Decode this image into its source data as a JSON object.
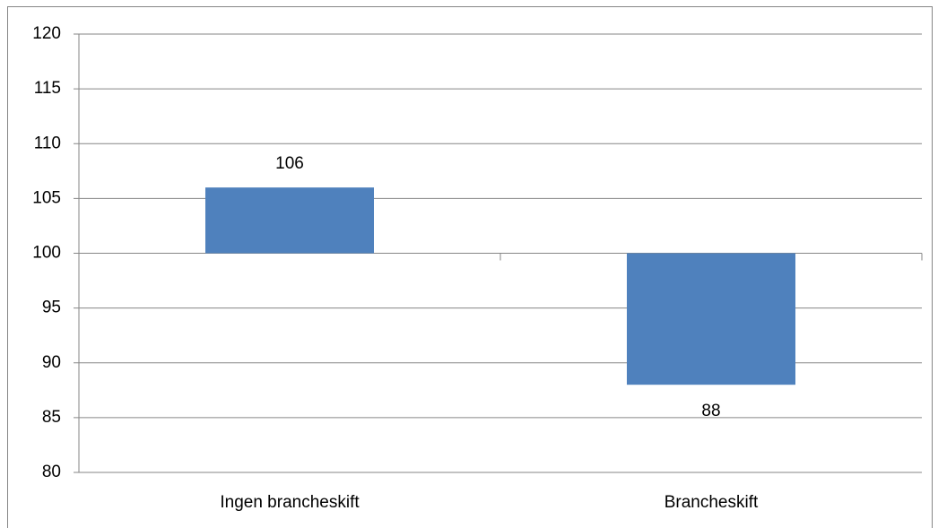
{
  "chart_data": {
    "type": "bar",
    "categories": [
      "Ingen brancheskift",
      "Brancheskift"
    ],
    "values": [
      106,
      88
    ],
    "color": "#4f81bd",
    "ylim": [
      80,
      120
    ],
    "yticks": [
      80,
      85,
      90,
      95,
      100,
      105,
      110,
      115,
      120
    ],
    "axis_crosses_at": 100,
    "grid": true
  }
}
